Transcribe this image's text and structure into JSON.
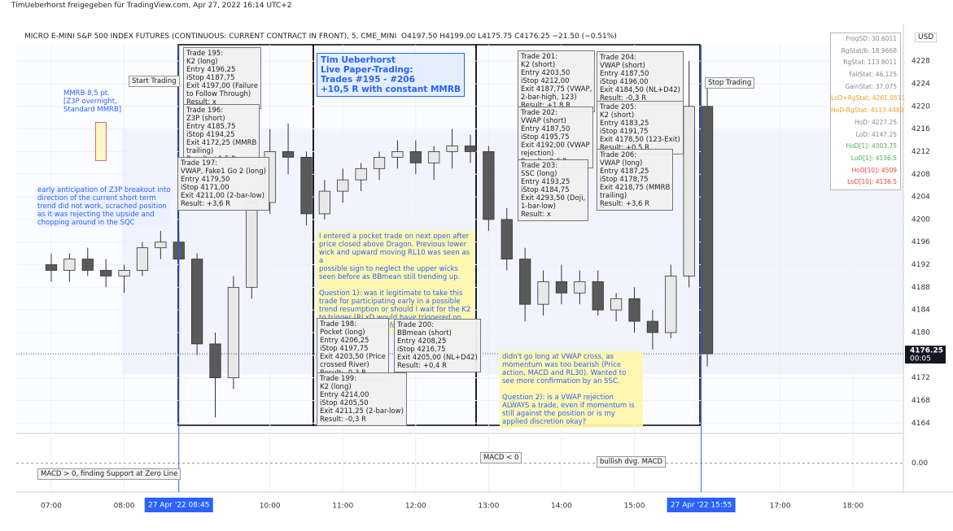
{
  "header": {
    "credit": "TimUeberhorst freigegeben für TradingView.com, Apr 27, 2022 16:14 UTC+2",
    "symbol": "MICRO E-MINI S&P 500 INDEX FUTURES (CONTINUOUS: CURRENT CONTRACT IN FRONT), 5, CME_MINI",
    "ohlc": "O4197.50  H4199.00  L4175.75  C4176.25  −21.50 (−0.51%)",
    "currency": "USD"
  },
  "stats": [
    {
      "text": "FrogSD: 30.6011",
      "color": "#888888"
    },
    {
      "text": "RgStat/6: 18.9668",
      "color": "#888888"
    },
    {
      "text": "RgStat: 113.8011",
      "color": "#888888"
    },
    {
      "text": "FailStat: 46.125",
      "color": "#888888"
    },
    {
      "text": "GainStat: 37.075",
      "color": "#888888"
    },
    {
      "text": "LoD+RgStat: 4261.0511",
      "color": "#f0a020"
    },
    {
      "text": "HoD-RgStat: 4113.4489",
      "color": "#f0a020"
    },
    {
      "text": "HoD: 4227.25",
      "color": "#888888"
    },
    {
      "text": "LoD: 4147.25",
      "color": "#888888"
    },
    {
      "text": "HoD[1]: 4303.75",
      "color": "#4caf50"
    },
    {
      "text": "LoD[1]: 4136.5",
      "color": "#4caf50"
    },
    {
      "text": "HoD[10]: 4509",
      "color": "#f44336"
    },
    {
      "text": "LoD[10]: 4136.5",
      "color": "#f44336"
    }
  ],
  "annotations": [
    "Start Trading",
    "MMRB 8,5 pt.\n[Z3P overnight,\nStandard MMRB]",
    "early anticipation of Z3P breakout into\ndirection of the current short term\ntrend did not work, scrached position\nas it was rejecting the upside and\nchopping around in the SQC",
    "Trade 195:\nK2 (long)\nEntry 4196,25\niStop 4187,75\nExit 4197,00 (Failure\nto Follow Through)\nResult: x",
    "Trade 196:\nZ3P (short)\nEntry 4185,75\niStop 4194,25\nExit 4172,25 (MMRB\ntrailing)\nResult: +1,5 R",
    "Trade 197:\nVWAP, Fake1 Go 2 (long)\nEntry 4179,50\niStop 4171,00\nExit 4211,00 (2-bar-low)\nResult: +3,6 R",
    "Tim Ueberhorst\nLive Paper-Trading:\nTrades #195 - #206\n+10,5 R with constant MMRB",
    "I entered a pocket trade on next open after\nprice closed above Dragon. Previous lower\nwick and upward moving RL10 was seen as a\npossible sign to neglect the upper wicks\nseen before as BBmean still trending up.\n\nQuestion 1): was it legitimate to take this\ntrade for participating early in a possible\ntrend resumption or should I wait for the K2\nto trigger (RLxD would have triggered on\nnext candle even before K2)?",
    "Trade 198:\nPocket (long)\nEntry 4206,25\niStop 4197,75\nExit 4203,50 (Price\ncrossed River)\nResult: -0,3 R",
    "Trade 200:\nBBmean (short)\nEntry 4208,25\niStop 4216,75\nExit 4205,00 (NL+D42)\nResult: +0,4 R",
    "Trade 199:\nK2 (long)\nEntry 4214,00\niStop 4205,50\nExit 4211,25 (2-bar-low)\nResult: -0,3 R",
    "Trade 201:\nK2 (short)\nEntry 4203,50\niStop 4212,00\nExit 4187,75 (VWAP,\n2-bar-high, 123)\nResult: +1,8 R",
    "Trade 202:\nVWAP (short)\nEntry 4187,50\niStop 4195,75\nExit 4192,00 (VWAP\nrejection)\nResult: -0,6 R",
    "Trade 203:\nSSC (long)\nEntry 4193,25\niStop 4184,75\nExit 4293,50 (Doji,\n1-bar-low)\nResult: x",
    "Trade 204:\nVWAP (short)\nEntry 4187,50\niStop 4196,00\nExit 4184,50 (NL+D42)\nResult: -0,3 R",
    "Trade 205:\nK2 (short)\nEntry 4183,25\niStop 4191,75\nExit 4178,50 (123-Exit)\nResult: +0,5 R",
    "Trade 206:\nVWAP (long)\nEntry 4187,25\niStop 4178,75\nExit 4218,75 (MMRB\ntrailing)\nResult: +3,6 R",
    "didn't go long at VWAP cross, as\nmomentum was too bearish (Price\naction, MACD and RL30). Wanted to\nsee more confirmation by an SSC.\n\nQuestion 2): is a VWAP rejection\nALWAYS a trade, even if momentum is\nstill against the position or is my\napplied discretion okay?",
    "Stop Trading",
    "MACD > 0, finding Support at Zero Line",
    "MACD < 0",
    "bullish dvg. MACD"
  ],
  "chart_data": {
    "type": "candlestick",
    "x": [
      7,
      7.25,
      7.5,
      7.75,
      8,
      8.25,
      8.5,
      8.75,
      9,
      9.25,
      9.5,
      9.75,
      10,
      10.25,
      10.5,
      10.75,
      11,
      11.25,
      11.5,
      11.75,
      12,
      12.25,
      12.5,
      12.75,
      13,
      13.25,
      13.5,
      13.75,
      14,
      14.25,
      14.5,
      14.75,
      15,
      15.25,
      15.5,
      15.75,
      16
    ],
    "open": [
      4192,
      4191,
      4193,
      4191,
      4190,
      4191,
      4195,
      4196,
      4193,
      4178,
      4172,
      4188,
      4203,
      4212,
      4211,
      4201,
      4205,
      4207,
      4209,
      4211,
      4212,
      4210,
      4212,
      4213,
      4212,
      4200,
      4193,
      4185,
      4189,
      4187,
      4189,
      4184,
      4186,
      4182,
      4180,
      4190,
      4220
    ],
    "high": [
      4194,
      4194,
      4195,
      4193,
      4192,
      4196,
      4198,
      4198,
      4194,
      4180,
      4190,
      4205,
      4216,
      4217,
      4212,
      4207,
      4209,
      4210,
      4212,
      4214,
      4214,
      4213,
      4216,
      4215,
      4213,
      4202,
      4195,
      4191,
      4192,
      4191,
      4191,
      4187,
      4188,
      4184,
      4192,
      4228,
      4225
    ],
    "low": [
      4189,
      4189,
      4190,
      4188,
      4187,
      4190,
      4193,
      4191,
      4176,
      4165,
      4170,
      4186,
      4201,
      4208,
      4199,
      4200,
      4203,
      4205,
      4207,
      4209,
      4208,
      4207,
      4209,
      4210,
      4198,
      4191,
      4182,
      4183,
      4185,
      4185,
      4183,
      4182,
      4180,
      4177,
      4179,
      4188,
      4174
    ],
    "close": [
      4191,
      4193,
      4191,
      4190,
      4191,
      4195,
      4196,
      4193,
      4178,
      4172,
      4188,
      4203,
      4212,
      4211,
      4201,
      4205,
      4207,
      4209,
      4211,
      4212,
      4210,
      4212,
      4213,
      4212,
      4200,
      4193,
      4185,
      4189,
      4187,
      4189,
      4184,
      4186,
      4182,
      4180,
      4190,
      4220,
      4176.25
    ],
    "up_color": "#e8e8e8",
    "down_color": "#5a5a5a",
    "countdown": "00:05",
    "xlim": [
      6.52,
      18.69
    ],
    "ylim": [
      4162.6,
      4230.9
    ],
    "xticks": [
      {
        "value": 7,
        "label": "07:00"
      },
      {
        "value": 8,
        "label": "08:00"
      },
      {
        "value": 10,
        "label": "10:00"
      },
      {
        "value": 11,
        "label": "11:00"
      },
      {
        "value": 12,
        "label": "12:00"
      },
      {
        "value": 13,
        "label": "13:00"
      },
      {
        "value": 14,
        "label": "14:00"
      },
      {
        "value": 15,
        "label": "15:00"
      },
      {
        "value": 17,
        "label": "17:00"
      },
      {
        "value": 18,
        "label": "18:00"
      }
    ],
    "yticks": [
      4164,
      4168,
      4172,
      4176,
      4180,
      4184,
      4188,
      4192,
      4196,
      4200,
      4204,
      4208,
      4212,
      4216,
      4220,
      4224,
      4228
    ],
    "grid": true,
    "markers": [
      {
        "x": 8.75,
        "label": "27 Apr '22   08:45"
      },
      {
        "x": 15.9167,
        "label": "27 Apr '22   15:55"
      }
    ],
    "macd": {
      "ylim": [
        -1,
        1
      ],
      "yticks": [
        {
          "value": 0,
          "label": "0.00"
        }
      ]
    }
  }
}
